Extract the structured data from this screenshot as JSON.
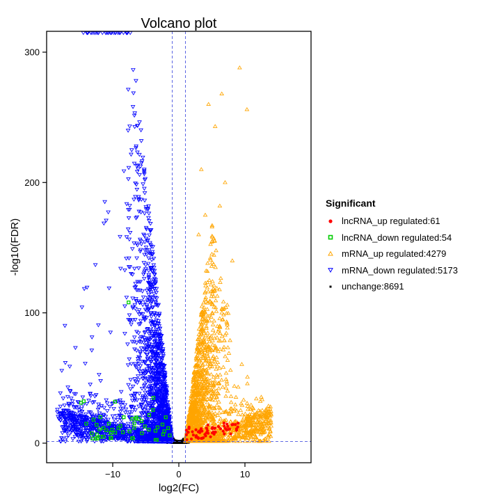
{
  "chart_data": {
    "type": "scatter",
    "title": "Volcano plot",
    "xlabel": "log2(FC)",
    "ylabel": "-log10(FDR)",
    "xlim": [
      -20,
      20
    ],
    "ylim": [
      -15,
      316
    ],
    "x_ticks": [
      -10,
      0,
      10
    ],
    "x_tick_labels": [
      "−10",
      "0",
      "10"
    ],
    "y_ticks": [
      0,
      100,
      200,
      300
    ],
    "y_tick_labels": [
      "0",
      "100",
      "200",
      "300"
    ],
    "thresholds": {
      "log2fc": [
        -1,
        1
      ],
      "neg_log10_fdr": 1.3
    },
    "legend_title": "Significant",
    "legend_position": "right",
    "series": [
      {
        "name": "lncRNA_up regulated:61",
        "color": "#ff0000",
        "marker": "circle",
        "count": 61
      },
      {
        "name": "lncRNA_down regulated:54",
        "color": "#00cc00",
        "marker": "square",
        "count": 54
      },
      {
        "name": "mRNA_up regulated:4279",
        "color": "#ffa500",
        "marker": "triangle-up",
        "count": 4279
      },
      {
        "name": "mRNA_down regulated:5173",
        "color": "#0000ff",
        "marker": "triangle-down",
        "count": 5173
      },
      {
        "name": "unchange:8691",
        "color": "#000000",
        "marker": "square-small",
        "count": 8691
      }
    ]
  }
}
